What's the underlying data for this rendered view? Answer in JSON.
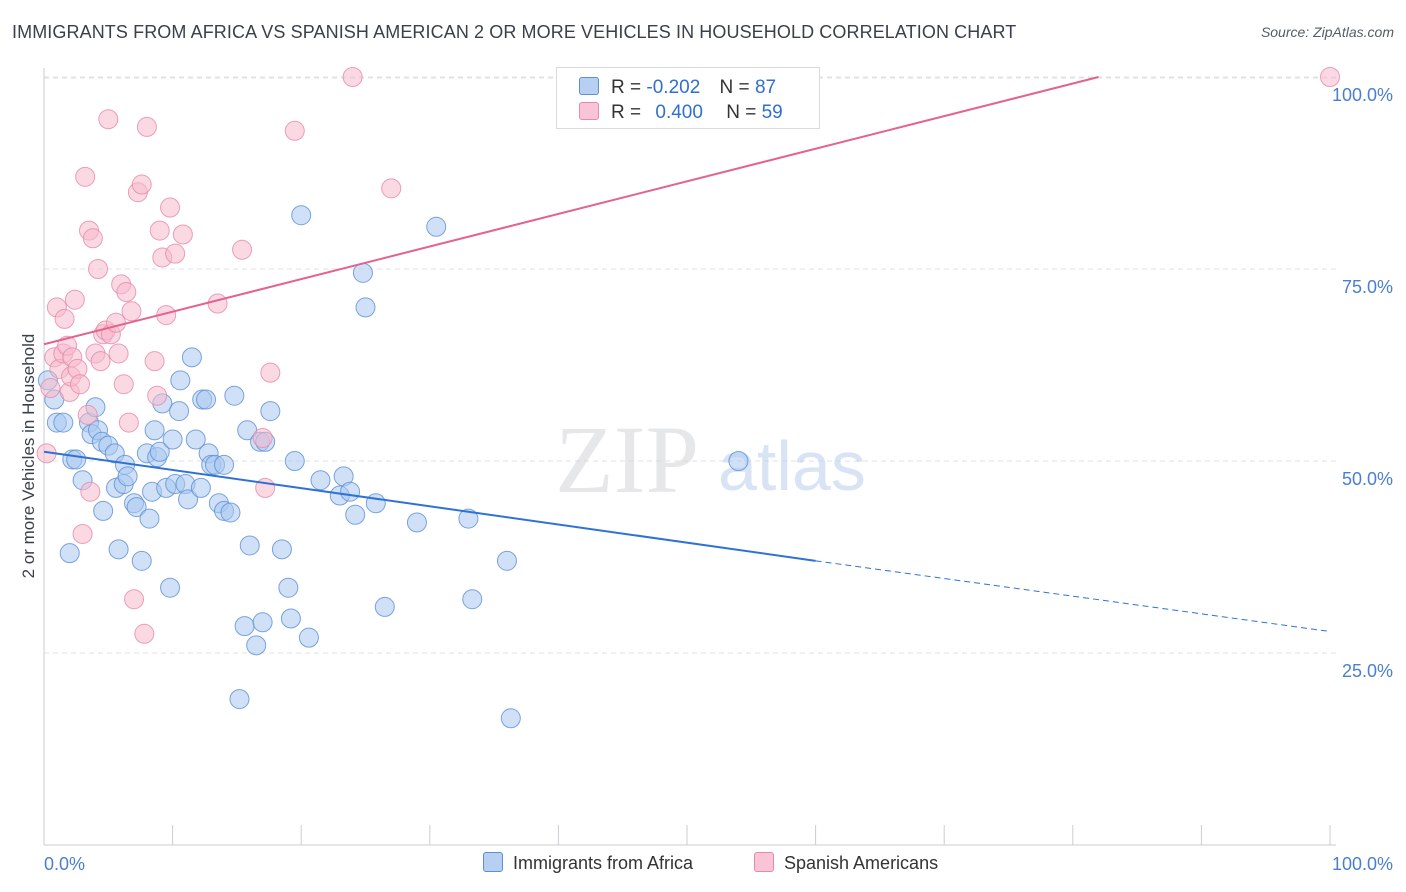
{
  "title": "IMMIGRANTS FROM AFRICA VS SPANISH AMERICAN 2 OR MORE VEHICLES IN HOUSEHOLD CORRELATION CHART",
  "source": "Source: ZipAtlas.com",
  "watermark": {
    "zip": "ZIP",
    "atlas": "atlas"
  },
  "legend": {
    "rows": [
      {
        "r_label": "R =",
        "r_value": "-0.202",
        "n_label": "N =",
        "n_value": "87"
      },
      {
        "r_label": "R =",
        "r_value": "0.400",
        "n_label": "N =",
        "n_value": "59"
      }
    ]
  },
  "bottom_legend": [
    "Immigrants from Africa",
    "Spanish Americans"
  ],
  "colors": {
    "blue_fill": "#a9c8f0",
    "blue_stroke": "#5b8fd6",
    "blue_line": "#2f72d6",
    "pink_fill": "#f7b9cc",
    "pink_stroke": "#e58aa8",
    "pink_line": "#e2638e",
    "tick_label": "#4a7fd0",
    "grid": "#dde2e8"
  },
  "chart_data": {
    "type": "scatter",
    "title": "IMMIGRANTS FROM AFRICA VS SPANISH AMERICAN 2 OR MORE VEHICLES IN HOUSEHOLD CORRELATION CHART",
    "xlabel": "",
    "ylabel": "2 or more Vehicles in Household",
    "xlim": [
      0,
      100
    ],
    "ylim": [
      0,
      102
    ],
    "x_tick_labels": [
      "0.0%",
      "100.0%"
    ],
    "y_ticks": [
      25,
      50,
      75,
      100
    ],
    "y_tick_labels": [
      "25.0%",
      "50.0%",
      "75.0%",
      "100.0%"
    ],
    "grid": true,
    "legend_position": "top-center",
    "series": [
      {
        "name": "Immigrants from Africa",
        "color": "#a9c8f0",
        "r": -0.202,
        "n": 87,
        "trend": {
          "x": [
            0,
            60,
            100
          ],
          "y": [
            51.2,
            37.0,
            27.8
          ],
          "dashed_from": 60
        },
        "points": [
          [
            0.3,
            60.5
          ],
          [
            0.8,
            58
          ],
          [
            1,
            55
          ],
          [
            1.5,
            55
          ],
          [
            2,
            38
          ],
          [
            2.2,
            50.2
          ],
          [
            2.5,
            50.2
          ],
          [
            3,
            47.5
          ],
          [
            3.5,
            55
          ],
          [
            3.7,
            53.5
          ],
          [
            4,
            57
          ],
          [
            4.2,
            54
          ],
          [
            4.5,
            52.5
          ],
          [
            4.6,
            43.5
          ],
          [
            5,
            52
          ],
          [
            5.5,
            51
          ],
          [
            5.6,
            46.5
          ],
          [
            5.8,
            38.5
          ],
          [
            6.2,
            47
          ],
          [
            6.3,
            49.5
          ],
          [
            6.5,
            48
          ],
          [
            7,
            44.5
          ],
          [
            7.2,
            44
          ],
          [
            7.6,
            37
          ],
          [
            8,
            51
          ],
          [
            8.2,
            42.5
          ],
          [
            8.4,
            46
          ],
          [
            8.6,
            54
          ],
          [
            8.8,
            50.5
          ],
          [
            9,
            51.2
          ],
          [
            9.2,
            57.5
          ],
          [
            9.5,
            46.5
          ],
          [
            9.8,
            33.5
          ],
          [
            10,
            52.8
          ],
          [
            10.2,
            47
          ],
          [
            10.5,
            56.5
          ],
          [
            10.6,
            60.5
          ],
          [
            11,
            47
          ],
          [
            11.2,
            45
          ],
          [
            11.5,
            63.5
          ],
          [
            11.8,
            52.8
          ],
          [
            12.2,
            46.5
          ],
          [
            12.3,
            58
          ],
          [
            12.6,
            58
          ],
          [
            12.8,
            51
          ],
          [
            13,
            49.5
          ],
          [
            13.3,
            49.5
          ],
          [
            13.6,
            44.5
          ],
          [
            14,
            43.5
          ],
          [
            14,
            49.5
          ],
          [
            14.5,
            43.3
          ],
          [
            14.8,
            58.5
          ],
          [
            15.2,
            19
          ],
          [
            15.6,
            28.5
          ],
          [
            15.8,
            54
          ],
          [
            16,
            39
          ],
          [
            16.5,
            26
          ],
          [
            16.8,
            52.5
          ],
          [
            17,
            29
          ],
          [
            17.2,
            52.5
          ],
          [
            17.6,
            56.5
          ],
          [
            18.5,
            38.5
          ],
          [
            19,
            33.5
          ],
          [
            19.2,
            29.5
          ],
          [
            19.5,
            50
          ],
          [
            20,
            82
          ],
          [
            20.6,
            27
          ],
          [
            21.5,
            47.5
          ],
          [
            23,
            45.5
          ],
          [
            23.3,
            48
          ],
          [
            23.8,
            46
          ],
          [
            24.2,
            43
          ],
          [
            24.8,
            74.5
          ],
          [
            25,
            70
          ],
          [
            25.8,
            44.5
          ],
          [
            26.5,
            31
          ],
          [
            29,
            42
          ],
          [
            30.5,
            80.5
          ],
          [
            33,
            42.5
          ],
          [
            33.3,
            32
          ],
          [
            36,
            37
          ],
          [
            36.3,
            16.5
          ],
          [
            54,
            50
          ]
        ]
      },
      {
        "name": "Spanish Americans",
        "color": "#f7b9cc",
        "r": 0.4,
        "n": 59,
        "trend": {
          "x": [
            0,
            82
          ],
          "y": [
            65.2,
            100
          ]
        },
        "points": [
          [
            0.2,
            51
          ],
          [
            0.5,
            59.5
          ],
          [
            0.8,
            63.5
          ],
          [
            1,
            70
          ],
          [
            1.2,
            62
          ],
          [
            1.5,
            64
          ],
          [
            1.6,
            68.5
          ],
          [
            1.8,
            65
          ],
          [
            2,
            59
          ],
          [
            2.1,
            61
          ],
          [
            2.2,
            63.5
          ],
          [
            2.4,
            71
          ],
          [
            2.6,
            62
          ],
          [
            2.8,
            60
          ],
          [
            3,
            40.5
          ],
          [
            3.2,
            87
          ],
          [
            3.4,
            56
          ],
          [
            3.5,
            80
          ],
          [
            3.6,
            46
          ],
          [
            3.8,
            79
          ],
          [
            4,
            64
          ],
          [
            4.2,
            75
          ],
          [
            4.4,
            63
          ],
          [
            4.6,
            66.5
          ],
          [
            4.8,
            67
          ],
          [
            5,
            94.5
          ],
          [
            5.2,
            66.5
          ],
          [
            5.6,
            68
          ],
          [
            5.8,
            64
          ],
          [
            6,
            73
          ],
          [
            6.2,
            60
          ],
          [
            6.4,
            72
          ],
          [
            6.6,
            55
          ],
          [
            6.8,
            69.5
          ],
          [
            7,
            32
          ],
          [
            7.3,
            85
          ],
          [
            7.6,
            86
          ],
          [
            7.8,
            27.5
          ],
          [
            8,
            93.5
          ],
          [
            8.6,
            63
          ],
          [
            8.8,
            58.5
          ],
          [
            9,
            80
          ],
          [
            9.2,
            76.5
          ],
          [
            9.5,
            69
          ],
          [
            9.8,
            83
          ],
          [
            10.2,
            77
          ],
          [
            10.8,
            79.5
          ],
          [
            13.5,
            70.5
          ],
          [
            15.4,
            77.5
          ],
          [
            17,
            53
          ],
          [
            17.2,
            46.5
          ],
          [
            17.6,
            61.5
          ],
          [
            19.5,
            93
          ],
          [
            24,
            100
          ],
          [
            27,
            85.5
          ],
          [
            100,
            100
          ]
        ]
      }
    ]
  }
}
